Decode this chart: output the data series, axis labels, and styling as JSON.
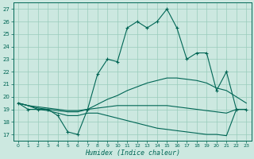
{
  "xlabel": "Humidex (Indice chaleur)",
  "xlim": [
    -0.5,
    23.5
  ],
  "ylim": [
    16.5,
    27.5
  ],
  "yticks": [
    17,
    18,
    19,
    20,
    21,
    22,
    23,
    24,
    25,
    26,
    27
  ],
  "xticks": [
    0,
    1,
    2,
    3,
    4,
    5,
    6,
    7,
    8,
    9,
    10,
    11,
    12,
    13,
    14,
    15,
    16,
    17,
    18,
    19,
    20,
    21,
    22,
    23
  ],
  "bg_color": "#cce8e0",
  "grid_color": "#99ccbb",
  "line_color": "#006655",
  "line1": [
    19.5,
    19.0,
    19.0,
    19.0,
    18.5,
    17.2,
    17.0,
    19.0,
    21.8,
    23.0,
    22.8,
    25.5,
    26.0,
    25.5,
    26.0,
    27.0,
    25.5,
    23.0,
    23.5,
    23.5,
    20.5,
    22.0,
    19.0,
    19.0
  ],
  "line_upper": [
    19.5,
    19.3,
    19.2,
    19.1,
    19.0,
    18.9,
    18.9,
    19.0,
    19.4,
    19.8,
    20.1,
    20.5,
    20.8,
    21.1,
    21.3,
    21.5,
    21.5,
    21.4,
    21.3,
    21.1,
    20.7,
    20.5,
    20.0,
    19.5
  ],
  "line_mid": [
    19.5,
    19.3,
    19.1,
    19.0,
    18.9,
    18.8,
    18.8,
    19.0,
    19.1,
    19.2,
    19.3,
    19.3,
    19.3,
    19.3,
    19.3,
    19.3,
    19.2,
    19.1,
    19.0,
    18.9,
    18.8,
    18.7,
    19.0,
    19.0
  ],
  "line_lower": [
    19.5,
    19.3,
    19.0,
    18.9,
    18.7,
    18.5,
    18.5,
    18.7,
    18.7,
    18.5,
    18.3,
    18.1,
    17.9,
    17.7,
    17.5,
    17.4,
    17.3,
    17.2,
    17.1,
    17.0,
    17.0,
    16.9,
    19.0,
    19.0
  ]
}
